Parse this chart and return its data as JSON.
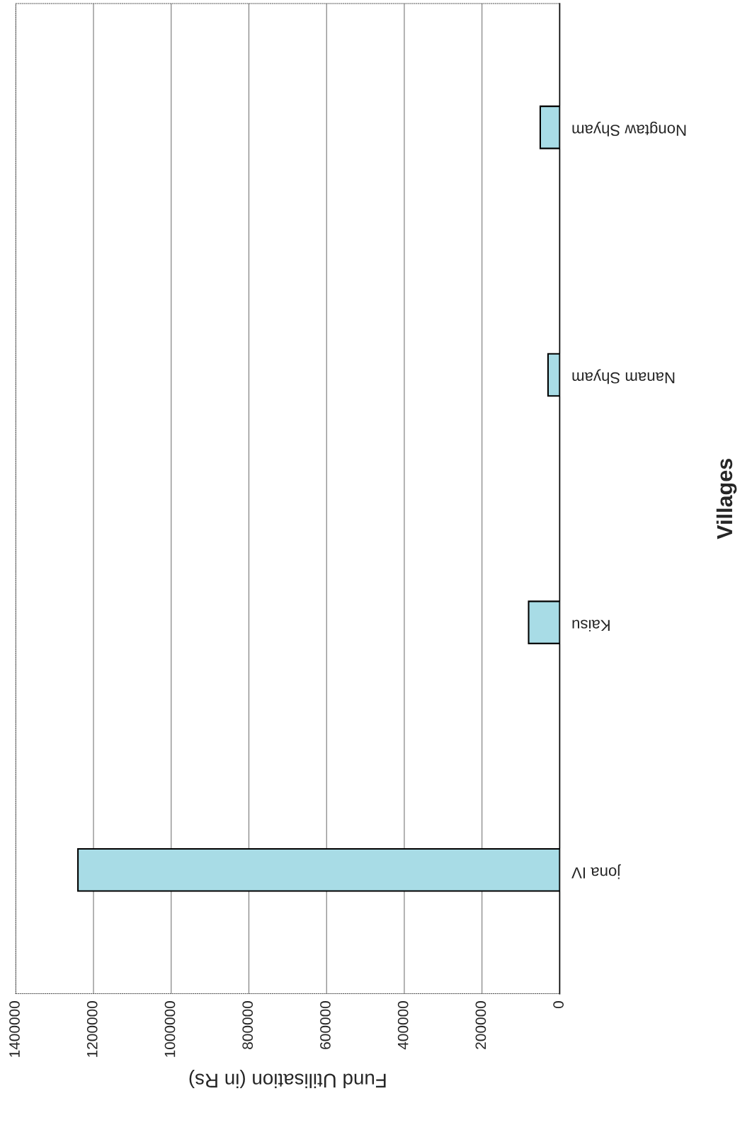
{
  "chart_data": {
    "type": "bar",
    "orientation": "horizontal",
    "categories": [
      "Nongtaw Shyam",
      "Nanam Shyam",
      "Kaisu",
      "jona IV"
    ],
    "values": [
      50000,
      30000,
      80000,
      1240000
    ],
    "color": "#a8dce6",
    "xlabel": "Fund Utilisation (in Rs)",
    "ylabel": "Villages",
    "xlim": [
      1400000,
      0
    ],
    "xticks": [
      0,
      200000,
      400000,
      600000,
      800000,
      1000000,
      1200000,
      1400000
    ],
    "grid": "x"
  }
}
